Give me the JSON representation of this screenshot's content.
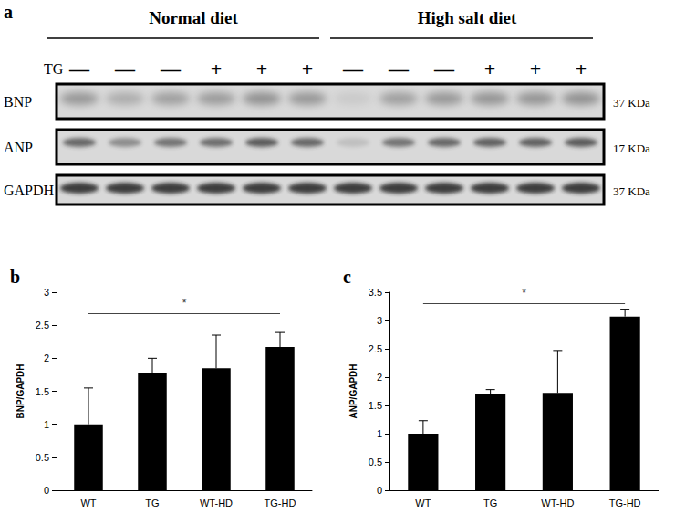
{
  "blot": {
    "panel": "a",
    "groups": [
      "Normal diet",
      "High salt diet"
    ],
    "row_label": "TG",
    "lanes": [
      "—",
      "—",
      "—",
      "+",
      "+",
      "+",
      "—",
      "—",
      "—",
      "+",
      "+",
      "+"
    ],
    "rows": [
      {
        "name": "BNP",
        "size": "37 KDa"
      },
      {
        "name": "ANP",
        "size": "17 KDa"
      },
      {
        "name": "GAPDH",
        "size": "37 KDa"
      }
    ]
  },
  "chart_data": [
    {
      "type": "bar",
      "title": "b",
      "y_label": "BNP/GAPDH",
      "categories": [
        "WT",
        "TG",
        "WT-HD",
        "TG-HD"
      ],
      "values": [
        1.0,
        1.77,
        1.85,
        2.17
      ],
      "errors": [
        0.55,
        0.23,
        0.5,
        0.22
      ],
      "color": "#000000",
      "ylim": [
        0,
        3
      ],
      "yticks": [
        0,
        0.5,
        1,
        1.5,
        2,
        2.5,
        3
      ],
      "grid": false,
      "annotations": [
        {
          "text": "*",
          "y": 2.68,
          "from": "WT",
          "to": "TG-HD"
        }
      ]
    },
    {
      "type": "bar",
      "title": "c",
      "y_label": "ANP/GAPDH",
      "categories": [
        "WT",
        "TG",
        "WT-HD",
        "TG-HD"
      ],
      "values": [
        1.0,
        1.7,
        1.72,
        3.07
      ],
      "errors": [
        0.23,
        0.08,
        0.75,
        0.13
      ],
      "color": "#000000",
      "ylim": [
        0,
        3.5
      ],
      "yticks": [
        0,
        0.5,
        1,
        1.5,
        2,
        2.5,
        3,
        3.5
      ],
      "grid": false,
      "annotations": [
        {
          "text": "*",
          "y": 3.3,
          "from": "WT",
          "to": "TG-HD"
        }
      ]
    }
  ]
}
